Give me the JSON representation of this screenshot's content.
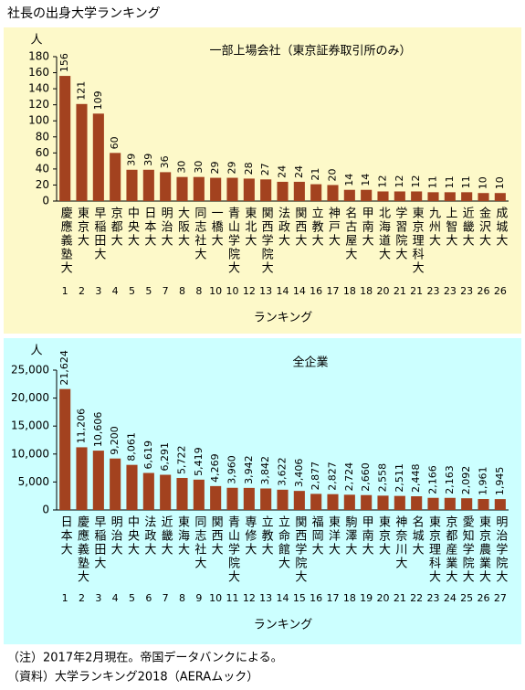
{
  "title": "社長の出身大学ランキング",
  "chart_data": [
    {
      "type": "bar",
      "title": "一部上場会社（東京証券取引所のみ）",
      "ylabel": "人",
      "xlabel": "ランキング",
      "categories": [
        "慶應義塾大",
        "東京大",
        "早稲田大",
        "京都大",
        "中央大",
        "日本大",
        "明治大",
        "大阪大",
        "同志社大",
        "一橋大",
        "青山学院大",
        "東北大",
        "関西学院大",
        "法政大",
        "関西大",
        "立教大",
        "神戸大",
        "名古屋大",
        "甲南大",
        "北海道大",
        "学習院大",
        "東京理科大",
        "九州大",
        "上智大",
        "近畿大",
        "金沢大",
        "成城大"
      ],
      "values": [
        156,
        121,
        109,
        60,
        39,
        39,
        36,
        30,
        30,
        29,
        29,
        28,
        27,
        24,
        24,
        21,
        20,
        14,
        14,
        12,
        12,
        12,
        11,
        11,
        11,
        10,
        10
      ],
      "ranks": [
        1,
        2,
        3,
        4,
        5,
        5,
        7,
        8,
        8,
        10,
        10,
        12,
        13,
        14,
        14,
        16,
        17,
        18,
        18,
        20,
        21,
        21,
        23,
        23,
        23,
        26,
        26
      ],
      "color": "#a3421f",
      "ylim": [
        0,
        180
      ],
      "yticks": [
        0,
        20,
        40,
        60,
        80,
        100,
        120,
        140,
        160,
        180
      ],
      "grid": false
    },
    {
      "type": "bar",
      "title": "全企業",
      "ylabel": "人",
      "xlabel": "ランキング",
      "categories": [
        "日本大",
        "慶應義塾大",
        "早稲田大",
        "明治大",
        "中央大",
        "法政大",
        "近畿大",
        "東海大",
        "同志社大",
        "関西大",
        "青山学院大",
        "専修大",
        "立教大",
        "立命館大",
        "関西学院大",
        "福岡大",
        "東洋大",
        "駒澤大",
        "甲南大",
        "東京大",
        "神奈川大",
        "名城大",
        "東京理科大",
        "京都産業大",
        "愛知学院大",
        "東京農業大",
        "明治学院大"
      ],
      "values": [
        21624,
        11206,
        10606,
        9200,
        8061,
        6619,
        6291,
        5722,
        5419,
        4269,
        3960,
        3942,
        3842,
        3622,
        3406,
        2877,
        2827,
        2724,
        2660,
        2558,
        2511,
        2448,
        2166,
        2163,
        2092,
        1961,
        1945
      ],
      "value_labels": [
        "21,624",
        "11,206",
        "10,606",
        "9,200",
        "8,061",
        "6,619",
        "6,291",
        "5,722",
        "5,419",
        "4,269",
        "3,960",
        "3,942",
        "3,842",
        "3,622",
        "3,406",
        "2,877",
        "2,827",
        "2,724",
        "2,660",
        "2,558",
        "2,511",
        "2,448",
        "2,166",
        "2,163",
        "2,092",
        "1,961",
        "1,945"
      ],
      "ranks": [
        1,
        2,
        3,
        4,
        5,
        6,
        7,
        8,
        9,
        10,
        11,
        12,
        13,
        14,
        15,
        16,
        17,
        18,
        19,
        20,
        21,
        22,
        23,
        24,
        25,
        26,
        27
      ],
      "color": "#a3421f",
      "ylim": [
        0,
        25000
      ],
      "yticks": [
        0,
        {
          "value": 5000,
          "label": "5,000"
        },
        {
          "value": 10000,
          "label": "10,000"
        },
        {
          "value": 15000,
          "label": "15,000"
        },
        {
          "value": 20000,
          "label": "20,000"
        },
        {
          "value": 25000,
          "label": "25,000"
        }
      ],
      "grid": false
    }
  ],
  "notes": [
    "（注）2017年2月現在。帝国データバンクによる。",
    "（資料）大学ランキング2018（AERAムック）"
  ]
}
